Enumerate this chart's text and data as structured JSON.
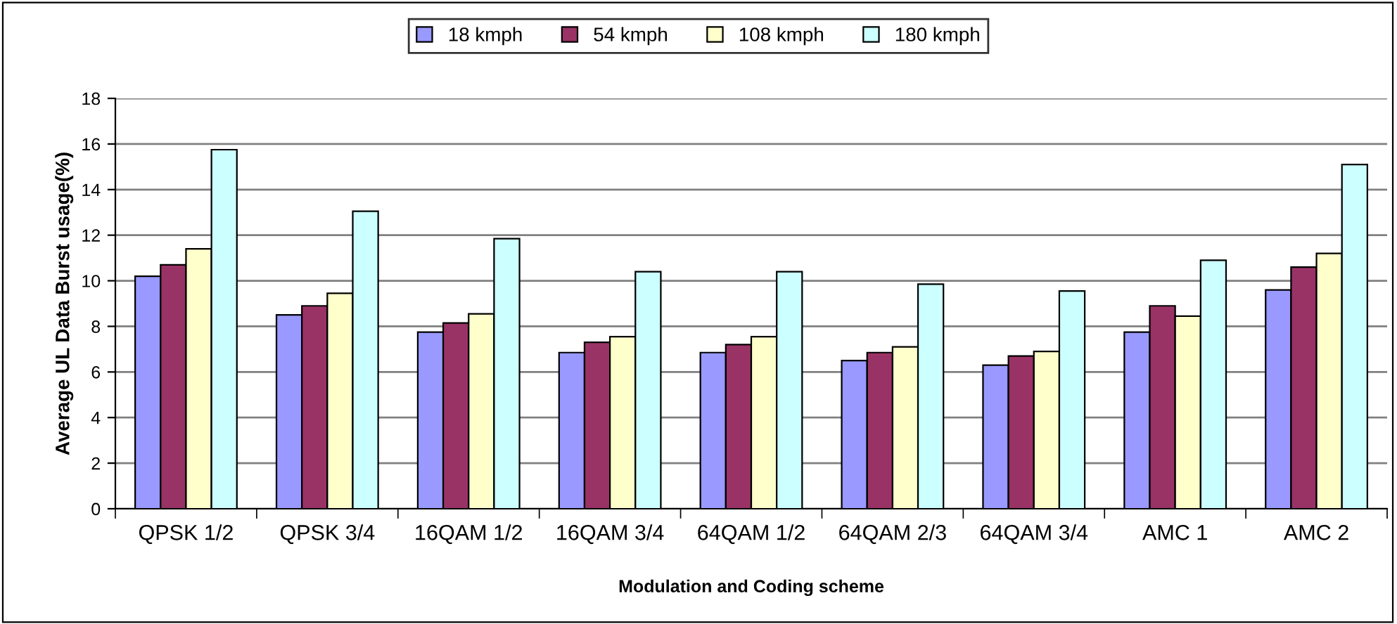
{
  "chart_data": {
    "type": "bar",
    "xlabel": "Modulation and Coding scheme",
    "ylabel": "Average UL Data Burst usage(%)",
    "categories": [
      "QPSK 1/2",
      "QPSK 3/4",
      "16QAM 1/2",
      "16QAM 3/4",
      "64QAM 1/2",
      "64QAM 2/3",
      "64QAM 3/4",
      "AMC 1",
      "AMC 2"
    ],
    "series": [
      {
        "name": "18 kmph",
        "color": "#9999ff",
        "values": [
          10.2,
          8.5,
          7.75,
          6.85,
          6.85,
          6.5,
          6.3,
          7.75,
          9.6
        ]
      },
      {
        "name": "54 kmph",
        "color": "#993366",
        "values": [
          10.7,
          8.9,
          8.15,
          7.3,
          7.2,
          6.85,
          6.7,
          8.9,
          10.6
        ]
      },
      {
        "name": "108 kmph",
        "color": "#ffffcc",
        "values": [
          11.4,
          9.45,
          8.55,
          7.55,
          7.55,
          7.1,
          6.9,
          8.45,
          11.2
        ]
      },
      {
        "name": "180 kmph",
        "color": "#ccffff",
        "values": [
          15.75,
          13.05,
          11.85,
          10.4,
          10.4,
          9.85,
          9.55,
          10.9,
          15.1
        ]
      }
    ],
    "ylim": [
      0,
      18
    ],
    "yticks": [
      0,
      2,
      4,
      6,
      8,
      10,
      12,
      14,
      16,
      18
    ],
    "grid": "y",
    "legend": "top"
  }
}
